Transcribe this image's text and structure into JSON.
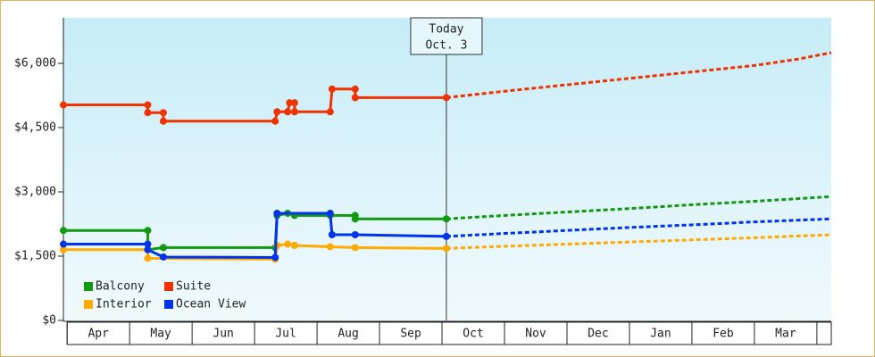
{
  "chart_data": {
    "type": "step-line",
    "xlim": [
      -0.06,
      12.23
    ],
    "ylim": [
      0,
      7000
    ],
    "yticks": [
      {
        "value": 0,
        "label": "$0"
      },
      {
        "value": 1500,
        "label": "$1,500"
      },
      {
        "value": 3000,
        "label": "$3,000"
      },
      {
        "value": 4500,
        "label": "$4,500"
      },
      {
        "value": 6000,
        "label": "$6,000"
      }
    ],
    "x_categories": [
      "Apr",
      "May",
      "Jun",
      "Jul",
      "Aug",
      "Sep",
      "Oct",
      "Nov",
      "Dec",
      "Jan",
      "Feb",
      "Mar"
    ],
    "annotation": {
      "x": 6.07,
      "lines": [
        "Today",
        "Oct. 3"
      ]
    },
    "legend": "bottom-left",
    "series": [
      {
        "name": "Balcony",
        "color": "#119911",
        "x": [
          -0.06,
          1.29,
          1.29,
          1.54,
          3.33,
          3.36,
          3.53,
          3.64,
          4.21,
          4.61,
          4.61,
          6.07
        ],
        "values": [
          2100,
          2100,
          1650,
          1700,
          1700,
          2450,
          2500,
          2450,
          2450,
          2450,
          2370,
          2370
        ],
        "forecast_x": [
          6.07,
          7,
          8,
          9,
          10,
          11,
          12.23
        ],
        "forecast_values": [
          2370,
          2450,
          2530,
          2610,
          2700,
          2780,
          2890
        ]
      },
      {
        "name": "Suite",
        "color": "#ee3300",
        "x": [
          -0.06,
          1.29,
          1.29,
          1.54,
          1.54,
          3.33,
          3.36,
          3.53,
          3.56,
          3.64,
          3.64,
          4.21,
          4.24,
          4.61,
          4.61,
          6.07
        ],
        "values": [
          5030,
          5030,
          4850,
          4850,
          4650,
          4650,
          4870,
          4870,
          5080,
          5080,
          4870,
          4870,
          5400,
          5400,
          5200,
          5200
        ],
        "forecast_x": [
          6.07,
          7,
          8,
          9,
          10,
          11,
          11.7,
          12.23
        ],
        "forecast_values": [
          5200,
          5350,
          5500,
          5650,
          5800,
          5950,
          6100,
          6250
        ]
      },
      {
        "name": "Interior",
        "color": "#ffaa00",
        "x": [
          -0.06,
          1.29,
          1.29,
          3.33,
          3.36,
          3.53,
          3.64,
          4.21,
          4.61,
          6.07
        ],
        "values": [
          1650,
          1650,
          1450,
          1430,
          1750,
          1780,
          1750,
          1720,
          1700,
          1680
        ],
        "forecast_x": [
          6.07,
          7,
          8,
          9,
          10,
          11,
          12.23
        ],
        "forecast_values": [
          1680,
          1730,
          1780,
          1830,
          1880,
          1930,
          2000
        ]
      },
      {
        "name": "Ocean View",
        "color": "#0033ee",
        "x": [
          -0.06,
          1.29,
          1.29,
          1.54,
          3.33,
          3.36,
          4.21,
          4.24,
          4.61,
          6.07
        ],
        "values": [
          1780,
          1780,
          1650,
          1480,
          1470,
          2500,
          2500,
          2000,
          2000,
          1960
        ],
        "forecast_x": [
          6.07,
          7,
          8,
          9,
          10,
          11,
          12.23
        ],
        "forecast_values": [
          1960,
          2030,
          2100,
          2170,
          2230,
          2300,
          2370
        ]
      }
    ]
  }
}
